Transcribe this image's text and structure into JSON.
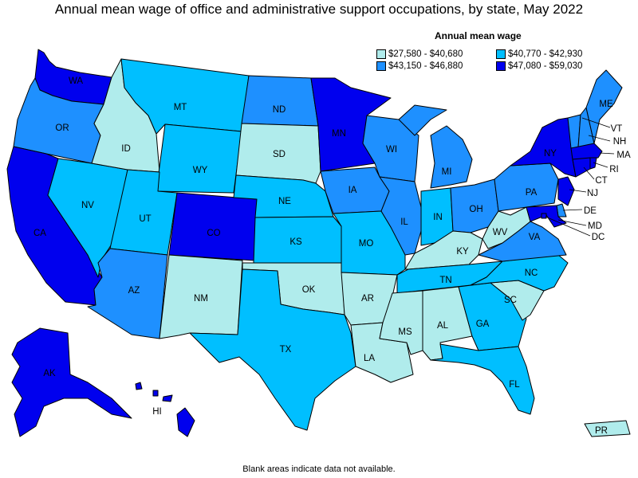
{
  "title": "Annual mean wage of office and administrative support occupations, by state, May 2022",
  "legend": {
    "title": "Annual mean wage",
    "items": [
      {
        "range": "$27,580 - $40,680",
        "color": "#b0ecec"
      },
      {
        "range": "$40,770 - $42,930",
        "color": "#00bfff"
      },
      {
        "range": "$43,150 - $46,880",
        "color": "#1e90ff"
      },
      {
        "range": "$47,080 - $59,030",
        "color": "#0000ee"
      }
    ]
  },
  "footnote": "Blank areas indicate data not available.",
  "states": [
    {
      "abbr": "WA",
      "bin": 3
    },
    {
      "abbr": "OR",
      "bin": 2
    },
    {
      "abbr": "CA",
      "bin": 3
    },
    {
      "abbr": "NV",
      "bin": 1
    },
    {
      "abbr": "ID",
      "bin": 0
    },
    {
      "abbr": "MT",
      "bin": 1
    },
    {
      "abbr": "WY",
      "bin": 1
    },
    {
      "abbr": "UT",
      "bin": 1
    },
    {
      "abbr": "AZ",
      "bin": 2
    },
    {
      "abbr": "CO",
      "bin": 3
    },
    {
      "abbr": "NM",
      "bin": 0
    },
    {
      "abbr": "ND",
      "bin": 2
    },
    {
      "abbr": "SD",
      "bin": 0
    },
    {
      "abbr": "NE",
      "bin": 1
    },
    {
      "abbr": "KS",
      "bin": 1
    },
    {
      "abbr": "OK",
      "bin": 0
    },
    {
      "abbr": "TX",
      "bin": 1
    },
    {
      "abbr": "MN",
      "bin": 3
    },
    {
      "abbr": "IA",
      "bin": 2
    },
    {
      "abbr": "MO",
      "bin": 1
    },
    {
      "abbr": "AR",
      "bin": 0
    },
    {
      "abbr": "LA",
      "bin": 0
    },
    {
      "abbr": "WI",
      "bin": 2
    },
    {
      "abbr": "IL",
      "bin": 2
    },
    {
      "abbr": "MI",
      "bin": 2
    },
    {
      "abbr": "IN",
      "bin": 1
    },
    {
      "abbr": "OH",
      "bin": 2
    },
    {
      "abbr": "KY",
      "bin": 0
    },
    {
      "abbr": "TN",
      "bin": 1
    },
    {
      "abbr": "MS",
      "bin": 0
    },
    {
      "abbr": "AL",
      "bin": 0
    },
    {
      "abbr": "GA",
      "bin": 1
    },
    {
      "abbr": "FL",
      "bin": 1
    },
    {
      "abbr": "SC",
      "bin": 0
    },
    {
      "abbr": "NC",
      "bin": 1
    },
    {
      "abbr": "VA",
      "bin": 2
    },
    {
      "abbr": "WV",
      "bin": 0
    },
    {
      "abbr": "PA",
      "bin": 2
    },
    {
      "abbr": "NY",
      "bin": 3
    },
    {
      "abbr": "VT",
      "bin": 2
    },
    {
      "abbr": "NH",
      "bin": 2
    },
    {
      "abbr": "ME",
      "bin": 2
    },
    {
      "abbr": "MA",
      "bin": 3
    },
    {
      "abbr": "RI",
      "bin": 3
    },
    {
      "abbr": "CT",
      "bin": 3
    },
    {
      "abbr": "NJ",
      "bin": 3
    },
    {
      "abbr": "DE",
      "bin": 2
    },
    {
      "abbr": "MD",
      "bin": 3
    },
    {
      "abbr": "DC",
      "bin": 3
    },
    {
      "abbr": "AK",
      "bin": 3
    },
    {
      "abbr": "HI",
      "bin": 3
    },
    {
      "abbr": "PR",
      "bin": 0
    }
  ]
}
